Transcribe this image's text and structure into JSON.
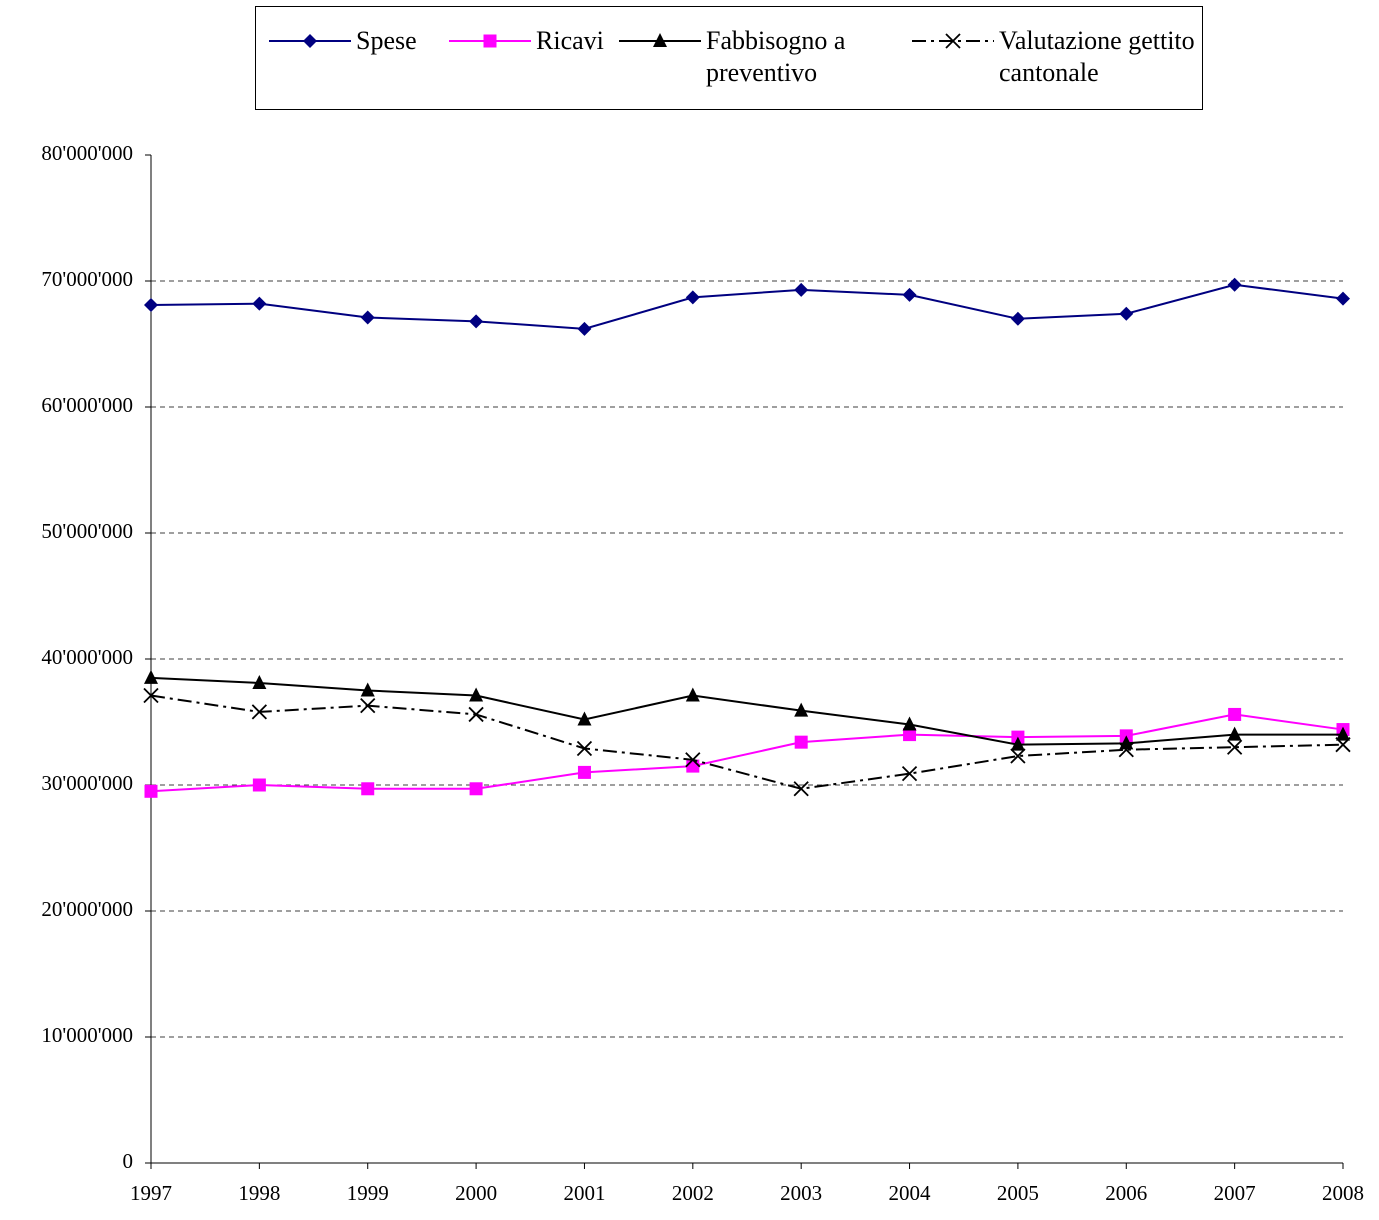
{
  "chart_data": {
    "type": "line",
    "x": [
      1997,
      1998,
      1999,
      2000,
      2001,
      2002,
      2003,
      2004,
      2005,
      2006,
      2007,
      2008
    ],
    "xlim": [
      1997,
      2008
    ],
    "xticks": [
      1997,
      1998,
      1999,
      2000,
      2001,
      2002,
      2003,
      2004,
      2005,
      2006,
      2007,
      2008
    ],
    "ylim": [
      0,
      80000000
    ],
    "yticks": [
      0,
      {
        "value": 10000000,
        "label": "10'000'000"
      },
      {
        "value": 20000000,
        "label": "20'000'000"
      },
      {
        "value": 30000000,
        "label": "30'000'000"
      },
      {
        "value": 40000000,
        "label": "40'000'000"
      },
      {
        "value": 50000000,
        "label": "50'000'000"
      },
      {
        "value": 60000000,
        "label": "60'000'000"
      },
      {
        "value": 70000000,
        "label": "70'000'000"
      },
      {
        "value": 80000000,
        "label": "80'000'000"
      }
    ],
    "grid": true,
    "legend": "top",
    "series": [
      {
        "name": "Spese",
        "color": "#000080",
        "marker": "diamond",
        "line_style": "solid",
        "values": [
          68100000,
          68200000,
          67100000,
          66800000,
          66200000,
          68700000,
          69300000,
          68900000,
          67000000,
          67400000,
          69700000,
          68600000
        ]
      },
      {
        "name": "Ricavi",
        "color": "#ff00ff",
        "marker": "square",
        "line_style": "solid",
        "values": [
          29500000,
          30000000,
          29700000,
          29700000,
          31000000,
          31500000,
          33400000,
          34000000,
          33800000,
          33900000,
          35600000,
          34400000
        ]
      },
      {
        "name": "Fabbisogno a preventivo",
        "color": "#000000",
        "marker": "triangle",
        "line_style": "solid",
        "values": [
          38500000,
          38100000,
          37500000,
          37100000,
          35200000,
          37100000,
          35900000,
          34800000,
          33200000,
          33300000,
          34000000,
          34000000
        ]
      },
      {
        "name": "Valutazione gettito cantonale",
        "color": "#000000",
        "marker": "x",
        "line_style": "dashdot",
        "values": [
          37100000,
          35800000,
          36300000,
          35600000,
          32900000,
          32000000,
          29700000,
          30900000,
          32300000,
          32800000,
          33000000,
          33200000
        ]
      }
    ]
  }
}
